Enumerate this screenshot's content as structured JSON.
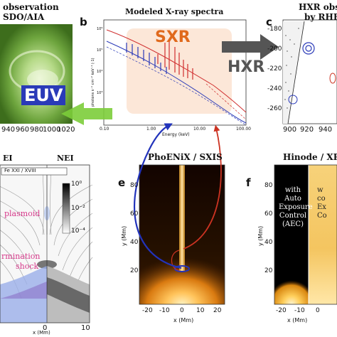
{
  "figure": {
    "panel_a": {
      "title_line1": "observation",
      "title_line2": "SDO/AIA",
      "ticks": [
        "940",
        "960",
        "980",
        "1000",
        "1020"
      ]
    },
    "panel_b": {
      "letter": "b",
      "title": "Modeled X-ray spectra",
      "ylabel": "photons s⁻¹ cm⁻² keV⁻¹ (·1)",
      "xlabel": "Energy (keV)",
      "xticks": [
        "0.10",
        "1.00",
        "10.00",
        "100.00"
      ],
      "yticks": [
        "10⁶",
        "10⁵",
        "10⁴",
        "10³"
      ],
      "sxr_label": "SXR",
      "hxr_label": "HXR",
      "euv_label": "EUV"
    },
    "panel_c": {
      "letter": "c",
      "title_line1": "HXR obse",
      "title_line2": "by RHE",
      "yticks": [
        "-180",
        "-200",
        "-220",
        "-240",
        "-260"
      ],
      "xticks": [
        "900",
        "920",
        "940"
      ]
    },
    "panel_d": {
      "left_label": "EI",
      "right_label": "NEI",
      "legend": "Fe XXI / XVIII",
      "plasmoid": "plasmoid",
      "termination_line1": "rmination",
      "termination_line2": "shock",
      "cbar_ticks": [
        "10⁰",
        "10⁻²",
        "10⁻⁴"
      ],
      "xlabel": "x (Mm)",
      "xticks": [
        "0",
        "10"
      ]
    },
    "panel_e": {
      "letter": "e",
      "title": "PhoENiX / SXIS",
      "ylabel": "y (Mm)",
      "xlabel": "x (Mm)",
      "yticks": [
        "80",
        "60",
        "40",
        "20"
      ],
      "xticks": [
        "-20",
        "-10",
        "0",
        "10",
        "20"
      ]
    },
    "panel_f": {
      "letter": "f",
      "title": "Hinode / XRT",
      "ylabel": "y (Mm)",
      "xlabel": "x (Mm)",
      "yticks": [
        "80",
        "60",
        "40",
        "20"
      ],
      "xticks": [
        "-20",
        "-10",
        "0"
      ],
      "aec_lines": [
        "with",
        "Auto",
        "Exposure",
        "Control",
        "(AEC)"
      ],
      "right_lines": [
        "w",
        "co",
        "Ex",
        "Co"
      ]
    }
  }
}
